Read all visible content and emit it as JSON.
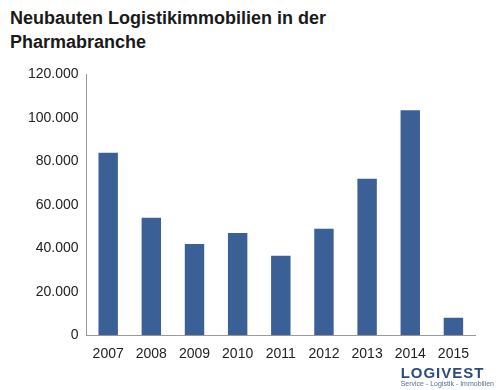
{
  "chart_data": {
    "type": "bar",
    "title": "Neubauten Logistikimmobilien in der Pharmabranche",
    "categories": [
      "2007",
      "2008",
      "2009",
      "2010",
      "2011",
      "2012",
      "2013",
      "2014",
      "2015"
    ],
    "values": [
      84000,
      54000,
      42000,
      47000,
      36500,
      49000,
      72000,
      103500,
      8000
    ],
    "color": "#3a6096",
    "ylim": [
      0,
      120000
    ],
    "yticks": [
      0,
      {
        "value": 20000,
        "label": "20.000"
      },
      {
        "value": 40000,
        "label": "40.000"
      },
      {
        "value": 60000,
        "label": "60.000"
      },
      {
        "value": 80000,
        "label": "80.000"
      },
      {
        "value": 100000,
        "label": "100.000"
      },
      {
        "value": 120000,
        "label": "120.000"
      }
    ],
    "grid": false,
    "logo": {
      "text": "LOGIVEST",
      "tagline": "Service - Logistik - Immobilien"
    }
  }
}
